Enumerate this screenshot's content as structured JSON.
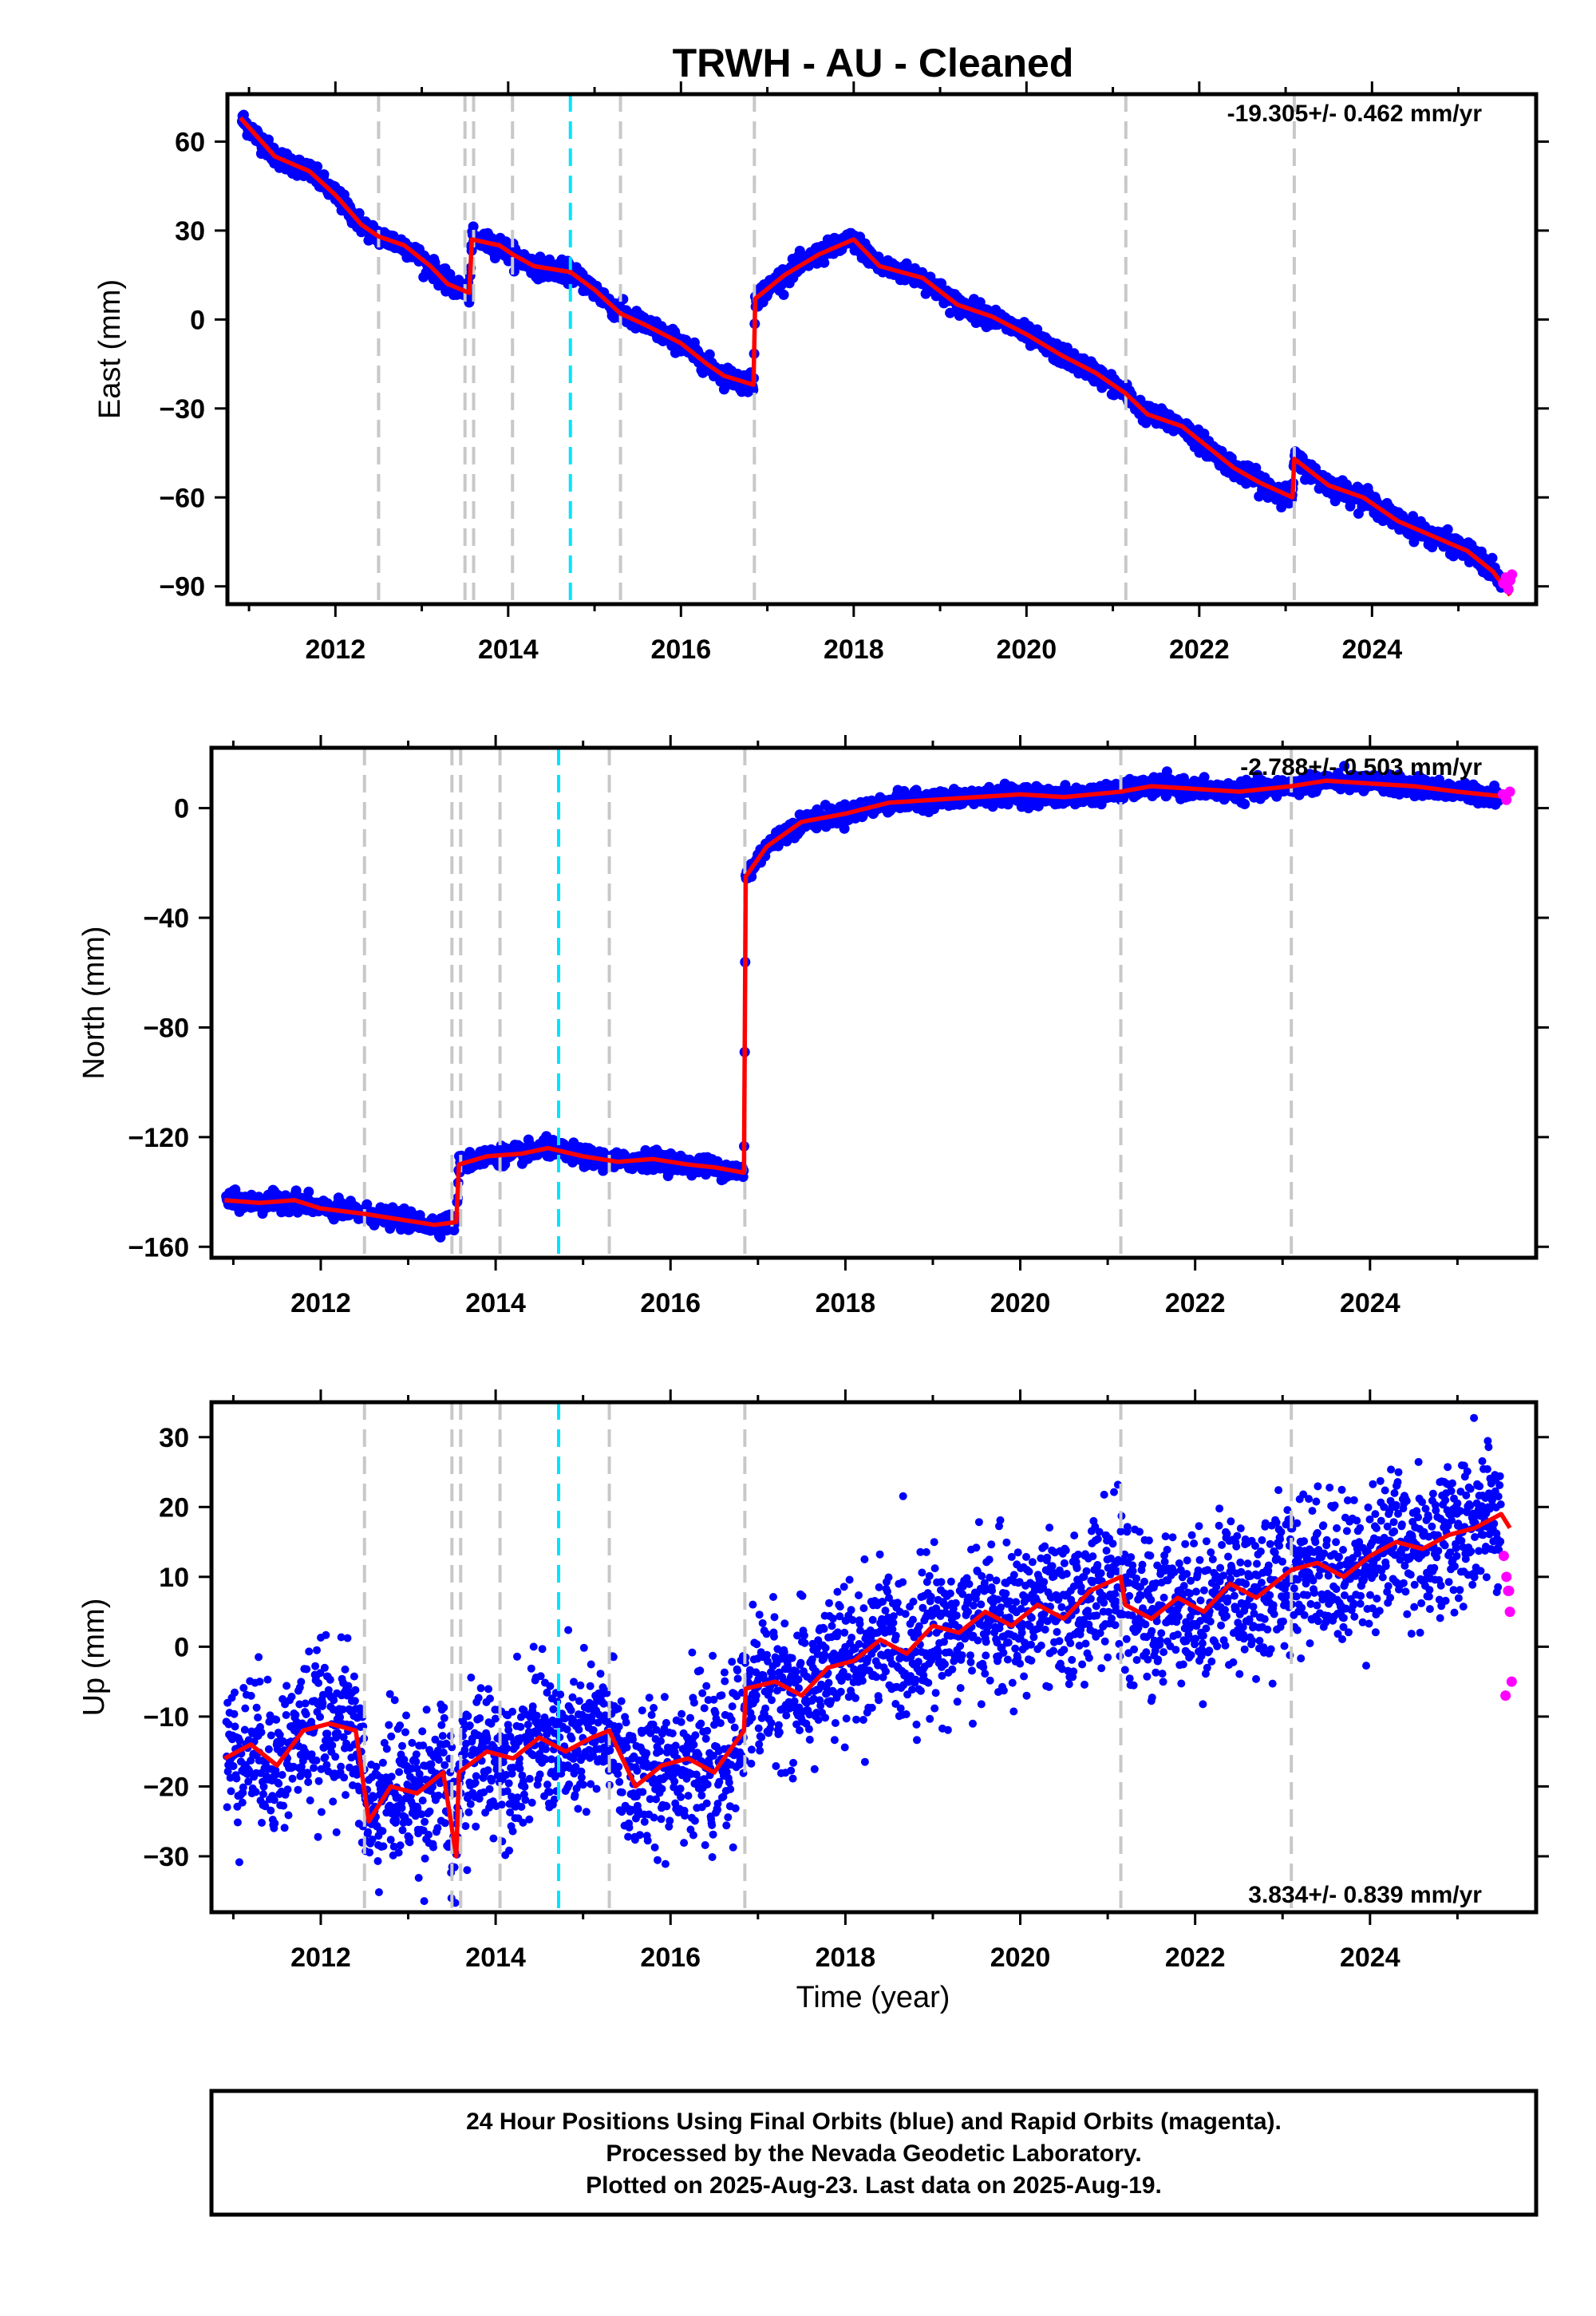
{
  "title": "TRWH  - AU - Cleaned",
  "xlabel": "Time (year)",
  "xlim": [
    2010.75,
    2025.9
  ],
  "x_ticks": [
    2012,
    2014,
    2016,
    2018,
    2020,
    2022,
    2024
  ],
  "x_tick_labels": [
    "2012",
    "2014",
    "2016",
    "2018",
    "2020",
    "2022",
    "2024"
  ],
  "footer": {
    "line1": "24 Hour Positions Using Final Orbits (blue) and Rapid Orbits (magenta).",
    "line2": "Processed by the Nevada Geodetic Laboratory.",
    "line3": "Plotted on 2025-Aug-23. Last data on 2025-Aug-19."
  },
  "colors": {
    "final_orbits": "#0000ff",
    "rapid_orbits": "#ff00ff",
    "model": "#ff0000",
    "event_line": "#c8c8c8",
    "special_event_line": "#00e5ff"
  },
  "event_lines": {
    "gray": [
      2012.5,
      2013.5,
      2013.6,
      2014.05,
      2015.3,
      2016.85,
      2021.15,
      2023.1
    ],
    "cyan": [
      2014.72
    ]
  },
  "chart_data": [
    {
      "type": "scatter",
      "ylabel": "East (mm)",
      "rate_label": "-19.305+/- 0.462 mm/yr",
      "rate_position": "top-right",
      "ylim": [
        -96,
        76
      ],
      "y_ticks": [
        60,
        30,
        0,
        -30,
        -60,
        -90
      ],
      "y_tick_labels": [
        "60",
        "30",
        "0",
        "−30",
        "−60",
        "−90"
      ],
      "series": [
        {
          "type": "line",
          "x": [
            2010.9,
            2011.3,
            2011.7,
            2012.0,
            2012.3,
            2012.5,
            2012.8,
            2013.1,
            2013.3,
            2013.55,
            2013.58,
            2013.9,
            2014.05,
            2014.3,
            2014.72,
            2015.0,
            2015.3,
            2015.6,
            2016.0,
            2016.3,
            2016.5,
            2016.84,
            2016.86,
            2017.2,
            2017.6,
            2018.0,
            2018.3,
            2018.8,
            2019.2,
            2019.6,
            2020.0,
            2020.4,
            2020.8,
            2021.15,
            2021.4,
            2021.8,
            2022.1,
            2022.4,
            2022.7,
            2023.08,
            2023.1,
            2023.5,
            2023.9,
            2024.3,
            2024.7,
            2025.1,
            2025.4,
            2025.6
          ],
          "y": [
            68,
            55,
            50,
            42,
            32,
            28,
            25,
            18,
            12,
            9,
            27,
            25,
            22,
            18,
            16,
            10,
            2,
            -2,
            -8,
            -15,
            -19,
            -22,
            7,
            15,
            22,
            27,
            18,
            14,
            5,
            1,
            -5,
            -12,
            -18,
            -25,
            -32,
            -36,
            -43,
            -50,
            -55,
            -60,
            -47,
            -56,
            -60,
            -68,
            -73,
            -78,
            -85,
            -93
          ]
        },
        {
          "type": "scatter",
          "x": [
            2025.52,
            2025.55,
            2025.58,
            2025.6,
            2025.62
          ],
          "y": [
            -89,
            -87,
            -91,
            -88,
            -86
          ]
        }
      ]
    },
    {
      "type": "scatter",
      "ylabel": "North (mm)",
      "rate_label": "-2.788+/- 0.503 mm/yr",
      "rate_position": "top-right",
      "ylim": [
        -164,
        22
      ],
      "y_ticks": [
        0,
        -40,
        -80,
        -120,
        -160
      ],
      "y_tick_labels": [
        "0",
        "−40",
        "−80",
        "−120",
        "−160"
      ],
      "series": [
        {
          "type": "line",
          "x": [
            2010.9,
            2011.3,
            2011.7,
            2012.0,
            2012.5,
            2012.9,
            2013.3,
            2013.55,
            2013.58,
            2013.9,
            2014.3,
            2014.6,
            2015.0,
            2015.4,
            2015.8,
            2016.2,
            2016.5,
            2016.84,
            2016.86,
            2017.1,
            2017.5,
            2018.0,
            2018.5,
            2019.0,
            2019.5,
            2020.0,
            2020.5,
            2021.15,
            2021.5,
            2022.0,
            2022.5,
            2023.1,
            2023.5,
            2024.0,
            2024.5,
            2025.0,
            2025.6
          ],
          "y": [
            -143,
            -144,
            -143,
            -146,
            -148,
            -150,
            -152,
            -151,
            -130,
            -127,
            -126,
            -124,
            -127,
            -129,
            -128,
            -130,
            -131,
            -133,
            -25,
            -14,
            -5,
            -2,
            2,
            3,
            4,
            5,
            4,
            6,
            8,
            7,
            6,
            8,
            10,
            9,
            8,
            6,
            4
          ]
        },
        {
          "type": "scatter",
          "x": [
            2025.52,
            2025.56,
            2025.6
          ],
          "y": [
            5,
            3,
            6
          ]
        }
      ]
    },
    {
      "type": "scatter",
      "ylabel": "Up (mm)",
      "rate_label": "3.834+/- 0.839 mm/yr",
      "rate_position": "bottom-right",
      "ylim": [
        -38,
        35
      ],
      "y_ticks": [
        30,
        20,
        10,
        0,
        -10,
        -20,
        -30
      ],
      "y_tick_labels": [
        "30",
        "20",
        "10",
        "0",
        "−10",
        "−20",
        "−30"
      ],
      "series": [
        {
          "type": "line",
          "x": [
            2010.9,
            2011.2,
            2011.5,
            2011.8,
            2012.1,
            2012.4,
            2012.55,
            2012.8,
            2013.1,
            2013.4,
            2013.55,
            2013.58,
            2013.9,
            2014.2,
            2014.5,
            2014.8,
            2015.1,
            2015.3,
            2015.6,
            2015.9,
            2016.2,
            2016.5,
            2016.84,
            2016.86,
            2017.2,
            2017.5,
            2017.8,
            2018.1,
            2018.4,
            2018.7,
            2019.0,
            2019.3,
            2019.6,
            2019.9,
            2020.2,
            2020.5,
            2020.8,
            2021.15,
            2021.2,
            2021.5,
            2021.8,
            2022.1,
            2022.4,
            2022.7,
            2023.1,
            2023.4,
            2023.7,
            2024.0,
            2024.3,
            2024.6,
            2024.9,
            2025.2,
            2025.5,
            2025.6
          ],
          "y": [
            -16,
            -14,
            -17,
            -12,
            -11,
            -12,
            -25,
            -20,
            -21,
            -18,
            -30,
            -18,
            -15,
            -16,
            -13,
            -15,
            -13,
            -12,
            -20,
            -17,
            -16,
            -18,
            -12,
            -6,
            -5,
            -7,
            -3,
            -2,
            1,
            -1,
            3,
            2,
            5,
            3,
            6,
            4,
            8,
            10,
            6,
            4,
            7,
            5,
            9,
            7,
            11,
            12,
            10,
            13,
            15,
            14,
            16,
            17,
            19,
            17
          ]
        },
        {
          "type": "scatter",
          "x": [
            2025.53,
            2025.56,
            2025.58,
            2025.6,
            2025.62,
            2025.55,
            2025.59
          ],
          "y": [
            13,
            10,
            8,
            5,
            -5,
            -7,
            8
          ]
        }
      ]
    }
  ]
}
